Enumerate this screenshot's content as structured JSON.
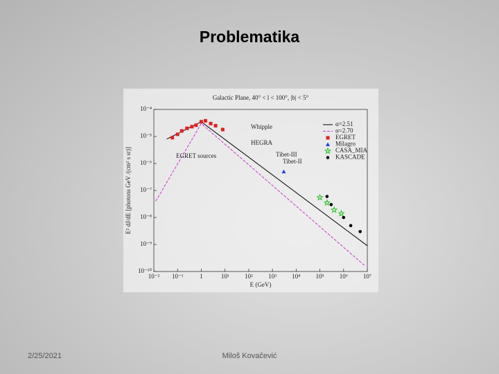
{
  "slide": {
    "title": "Problematika",
    "date": "2/25/2021",
    "author": "Miloš Kovačević"
  },
  "chart_data": {
    "type": "line",
    "title": "Galactic Plane, 40° < l < 100°, |b| < 5°",
    "xlabel": "E (GeV)",
    "ylabel": "E² dJ/dE [photons GeV /(cm² s sr)]",
    "xscale": "log",
    "yscale": "log",
    "xlim": [
      0.01,
      10000000
    ],
    "ylim": [
      1e-10,
      0.0001
    ],
    "xticks": [
      {
        "value": 0.01,
        "label": "10⁻²"
      },
      {
        "value": 0.1,
        "label": "10⁻¹"
      },
      1,
      {
        "value": 10,
        "label": "10¹"
      },
      {
        "value": 100,
        "label": "10²"
      },
      {
        "value": 1000,
        "label": "10³"
      },
      {
        "value": 10000,
        "label": "10⁴"
      },
      {
        "value": 100000,
        "label": "10⁵"
      },
      {
        "value": 1000000,
        "label": "10⁶"
      },
      {
        "value": 10000000,
        "label": "10⁷"
      }
    ],
    "yticks": [
      {
        "value": 1e-10,
        "label": "10⁻¹⁰"
      },
      {
        "value": 1e-09,
        "label": "10⁻⁹"
      },
      {
        "value": 1e-08,
        "label": "10⁻⁸"
      },
      {
        "value": 1e-07,
        "label": "10⁻⁷"
      },
      {
        "value": 1e-06,
        "label": "10⁻⁶"
      },
      {
        "value": 1e-05,
        "label": "10⁻⁵"
      },
      {
        "value": 0.0001,
        "label": "10⁻⁴"
      }
    ],
    "legend": "upper right",
    "annotations": [
      "Whipple",
      "HEGRA",
      "Tibet-III",
      "Tibet-II",
      "EGRET sources"
    ],
    "series": [
      {
        "name": "α=2.51",
        "color": "#000000",
        "mode": "line",
        "x": [
          0.035,
          1,
          10000000
        ],
        "values": [
          8e-06,
          3.5e-05,
          9e-10
        ]
      },
      {
        "name": "α=2.70",
        "color": "#d030d0",
        "mode": "dashed",
        "x": [
          0.012,
          1,
          8000000
        ],
        "values": [
          4e-08,
          3e-05,
          1.6e-10
        ]
      },
      {
        "name": "EGRET",
        "color": "#e02020",
        "mode": "square",
        "x": [
          0.06,
          0.1,
          0.15,
          0.25,
          0.4,
          0.6,
          1,
          1.5,
          2.5,
          4,
          8
        ],
        "values": [
          9e-06,
          1.2e-05,
          1.6e-05,
          2e-05,
          2.3e-05,
          2.6e-05,
          3.5e-05,
          3.8e-05,
          3e-05,
          2.5e-05,
          1.8e-05
        ]
      },
      {
        "name": "Milagro",
        "color": "#2040e0",
        "mode": "triangle",
        "x": [
          3000
        ],
        "values": [
          5e-07
        ]
      },
      {
        "name": "CASA_MIA",
        "color": "#20c020",
        "mode": "star",
        "x": [
          100000,
          200000,
          400000,
          800000
        ],
        "values": [
          5.5e-08,
          3.5e-08,
          1.9e-08,
          1.4e-08
        ]
      },
      {
        "name": "KASCADE",
        "color": "#000000",
        "mode": "circle",
        "x": [
          200000,
          300000,
          1000000,
          2000000,
          5000000
        ],
        "values": [
          6e-08,
          3e-08,
          1e-08,
          5e-09,
          3e-09
        ]
      }
    ]
  }
}
